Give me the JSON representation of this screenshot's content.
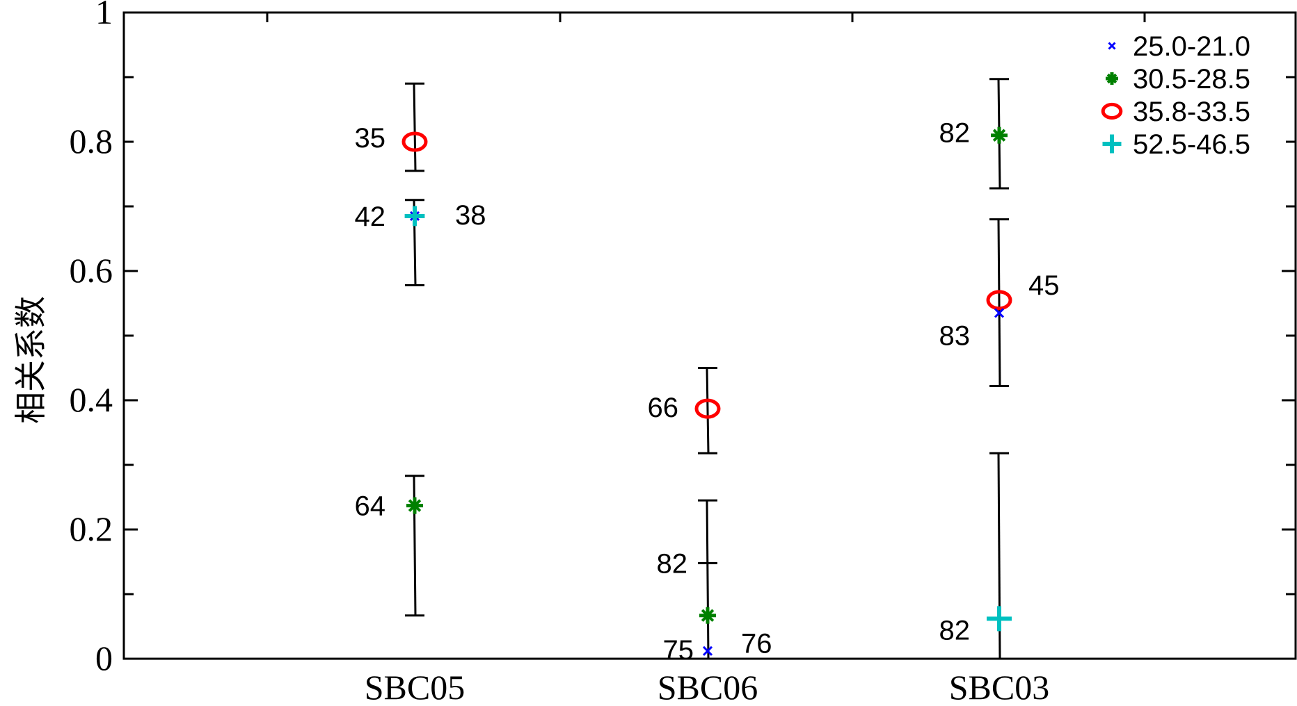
{
  "chart_data": {
    "type": "scatter",
    "categories": [
      "SBC05",
      "SBC06",
      "SBC03"
    ],
    "ylabel": "相关系数",
    "xlabel": "",
    "ylim": [
      0,
      1
    ],
    "yticks": [
      0,
      0.2,
      0.4,
      0.6,
      0.8,
      1
    ],
    "ytick_labels": [
      "0",
      "0.2",
      "0.4",
      "0.6",
      "0.8",
      "1"
    ],
    "legend_position": "top-right",
    "series": [
      {
        "name": "25.0-21.0",
        "marker": "x",
        "color": "#0000ff"
      },
      {
        "name": "30.5-28.5",
        "marker": "star",
        "color": "#008000"
      },
      {
        "name": "35.8-33.5",
        "marker": "circle",
        "color": "#ff0000"
      },
      {
        "name": "52.5-46.5",
        "marker": "plus",
        "color": "#00c0c0"
      }
    ],
    "points": [
      {
        "category": "SBC05",
        "series": 2,
        "y": 0.8,
        "label": "35"
      },
      {
        "category": "SBC05",
        "series": 0,
        "y": 0.685,
        "label": "42"
      },
      {
        "category": "SBC05",
        "series": 3,
        "y": 0.685,
        "label": "38"
      },
      {
        "category": "SBC05",
        "series": 1,
        "y": 0.237,
        "label": "64"
      },
      {
        "category": "SBC06",
        "series": 2,
        "y": 0.387,
        "label": "66"
      },
      {
        "category": "SBC06",
        "series": 1,
        "y": 0.067,
        "label": "76"
      },
      {
        "category": "SBC06",
        "series": 0,
        "y": 0.012,
        "label": "75"
      },
      {
        "category": "SBC03",
        "series": 1,
        "y": 0.81,
        "label": "82"
      },
      {
        "category": "SBC03",
        "series": 2,
        "y": 0.555,
        "label": "45"
      },
      {
        "category": "SBC03",
        "series": 0,
        "y": 0.535,
        "label": "83"
      },
      {
        "category": "SBC03",
        "series": 3,
        "y": 0.062,
        "label": "82"
      }
    ],
    "error_bars": [
      {
        "category": "SBC05",
        "low": 0.755,
        "high": 0.89
      },
      {
        "category": "SBC05",
        "low": 0.578,
        "high": 0.71
      },
      {
        "category": "SBC05",
        "low": 0.067,
        "high": 0.283
      },
      {
        "category": "SBC06",
        "low": 0.318,
        "high": 0.45
      },
      {
        "category": "SBC06",
        "low": 0.0,
        "high": 0.245,
        "mid": 0.148,
        "mid_label": "82"
      },
      {
        "category": "SBC03",
        "low": 0.728,
        "high": 0.897
      },
      {
        "category": "SBC03",
        "low": 0.422,
        "high": 0.68
      },
      {
        "category": "SBC03",
        "low": 0.0,
        "high": 0.318
      }
    ]
  }
}
